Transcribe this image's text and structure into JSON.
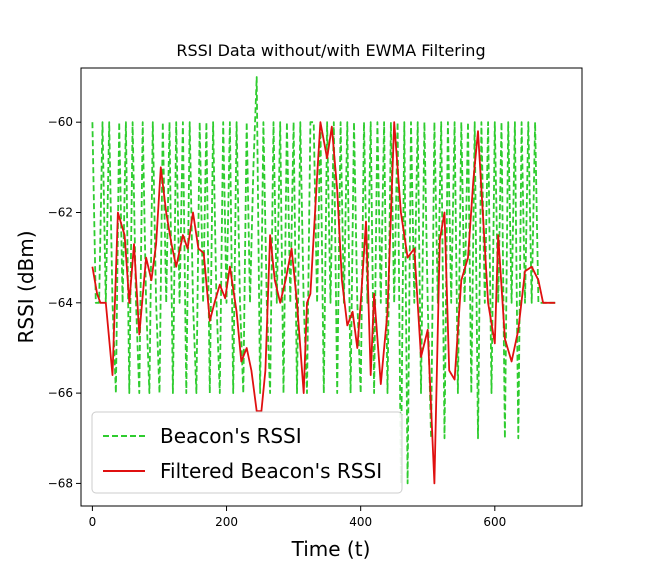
{
  "chart_data": {
    "type": "line",
    "title": "RSSI Data without/with EWMA Filtering",
    "xlabel": "Time (t)",
    "ylabel": "RSSI (dBm)",
    "xlim": [
      -17,
      730
    ],
    "ylim": [
      -68.5,
      -58.8
    ],
    "xticks": [
      {
        "value": 0,
        "label": "0"
      },
      {
        "value": 200,
        "label": "200"
      },
      {
        "value": 400,
        "label": "400"
      },
      {
        "value": 600,
        "label": "600"
      }
    ],
    "yticks": [
      {
        "value": -60,
        "label": "−60"
      },
      {
        "value": -62,
        "label": "−62"
      },
      {
        "value": -64,
        "label": "−64"
      },
      {
        "value": -66,
        "label": "−66"
      },
      {
        "value": -68,
        "label": "−68"
      }
    ],
    "legend": {
      "position": "lower-left"
    },
    "series": [
      {
        "name": "Beacon's RSSI",
        "color": "#2ecc2e",
        "style": "dashed",
        "x": [
          0,
          5,
          10,
          15,
          20,
          25,
          30,
          35,
          40,
          45,
          50,
          55,
          60,
          65,
          70,
          75,
          80,
          85,
          90,
          95,
          100,
          105,
          110,
          115,
          120,
          125,
          130,
          135,
          140,
          145,
          150,
          155,
          160,
          165,
          170,
          175,
          180,
          185,
          190,
          195,
          200,
          205,
          210,
          215,
          220,
          225,
          230,
          235,
          240,
          245,
          250,
          255,
          260,
          265,
          270,
          275,
          280,
          285,
          290,
          295,
          300,
          305,
          310,
          315,
          320,
          325,
          330,
          335,
          340,
          345,
          350,
          355,
          360,
          365,
          370,
          375,
          380,
          385,
          390,
          395,
          400,
          405,
          410,
          415,
          420,
          425,
          430,
          435,
          440,
          445,
          450,
          455,
          460,
          465,
          470,
          475,
          480,
          485,
          490,
          495,
          500,
          505,
          510,
          515,
          520,
          525,
          530,
          535,
          540,
          545,
          550,
          555,
          560,
          565,
          570,
          575,
          580,
          585,
          590,
          595,
          600,
          605,
          610,
          615,
          620,
          625,
          630,
          635,
          640,
          645,
          650,
          655,
          660,
          665,
          670,
          675,
          680,
          685,
          690
        ],
        "values": [
          -60,
          -64,
          -64,
          -60,
          -64,
          -60,
          -64,
          -66,
          -60,
          -64,
          -60,
          -66,
          -60,
          -64,
          -66,
          -60,
          -64,
          -66,
          -60,
          -64,
          -66,
          -60,
          -64,
          -60,
          -66,
          -60,
          -64,
          -60,
          -66,
          -60,
          -64,
          -66,
          -60,
          -64,
          -60,
          -66,
          -60,
          -64,
          -66,
          -60,
          -64,
          -60,
          -66,
          -60,
          -64,
          -66,
          -60,
          -64,
          -61,
          -59,
          -66,
          -60,
          -64,
          -66,
          -60,
          -64,
          -60,
          -66,
          -60,
          -64,
          -60,
          -66,
          -60,
          -64,
          -66,
          -60,
          -60,
          -64,
          -60,
          -66,
          -60,
          -64,
          -60,
          -66,
          -60,
          -64,
          -60,
          -66,
          -60,
          -64,
          -66,
          -60,
          -64,
          -60,
          -66,
          -60,
          -64,
          -60,
          -66,
          -60,
          -64,
          -60,
          -68,
          -60,
          -68,
          -60,
          -64,
          -60,
          -66,
          -60,
          -64,
          -67,
          -60,
          -64,
          -60,
          -67,
          -60,
          -64,
          -60,
          -66,
          -60,
          -64,
          -60,
          -66,
          -60,
          -67,
          -60,
          -64,
          -60,
          -66,
          -60,
          -64,
          -60,
          -67,
          -60,
          -64,
          -60,
          -67,
          -60,
          -64,
          -60,
          -64,
          -60,
          -64,
          -64,
          -64,
          -64,
          -64,
          -64
        ]
      },
      {
        "name": "Filtered Beacon's RSSI",
        "color": "#e01010",
        "style": "solid",
        "x": [
          0,
          7,
          12,
          20,
          30,
          38,
          48,
          55,
          62,
          70,
          80,
          88,
          95,
          102,
          110,
          118,
          125,
          135,
          142,
          150,
          158,
          166,
          175,
          182,
          190,
          198,
          205,
          215,
          222,
          230,
          237,
          245,
          252,
          258,
          265,
          272,
          280,
          288,
          297,
          305,
          315,
          320,
          325,
          335,
          340,
          350,
          357,
          365,
          372,
          380,
          388,
          395,
          400,
          408,
          415,
          420,
          430,
          440,
          450,
          460,
          470,
          480,
          490,
          500,
          510,
          518,
          525,
          532,
          540,
          550,
          560,
          568,
          575,
          590,
          600,
          605,
          615,
          625,
          635,
          645,
          655,
          665,
          672,
          680,
          690
        ],
        "values": [
          -63.2,
          -63.8,
          -64,
          -64,
          -65.6,
          -62,
          -62.5,
          -64,
          -62.7,
          -64.7,
          -63,
          -63.5,
          -62.7,
          -61,
          -62,
          -62.7,
          -63.2,
          -62.5,
          -62.8,
          -62,
          -62.8,
          -62.9,
          -64.4,
          -64,
          -63.6,
          -63.9,
          -63.2,
          -64.2,
          -65.3,
          -65,
          -65.5,
          -66.4,
          -66.4,
          -65.5,
          -62.5,
          -63.5,
          -64,
          -63.5,
          -62.8,
          -64,
          -66,
          -64,
          -63.8,
          -61.2,
          -60,
          -60.8,
          -60.1,
          -61.5,
          -63.5,
          -64.5,
          -64.2,
          -65,
          -64,
          -62.2,
          -65.6,
          -63.8,
          -65.8,
          -64.2,
          -60,
          -62,
          -63,
          -62.8,
          -65.2,
          -64.6,
          -68,
          -62.6,
          -62,
          -65.5,
          -65.7,
          -63.5,
          -63,
          -61.3,
          -60.2,
          -64,
          -64.9,
          -62.5,
          -64.8,
          -65.3,
          -64.6,
          -63.3,
          -63.2,
          -63.5,
          -64,
          -64,
          -64
        ]
      }
    ]
  }
}
